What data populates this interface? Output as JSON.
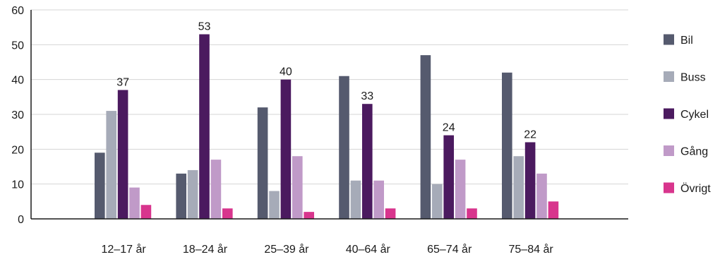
{
  "chart_data": {
    "type": "bar",
    "categories": [
      "12–17 år",
      "18–24 år",
      "25–39 år",
      "40–64 år",
      "65–74 år",
      "75–84 år"
    ],
    "series": [
      {
        "name": "Bil",
        "color": "#555a6e",
        "values": [
          19,
          13,
          32,
          41,
          47,
          42
        ]
      },
      {
        "name": "Buss",
        "color": "#a6abb8",
        "values": [
          31,
          14,
          8,
          11,
          10,
          18
        ]
      },
      {
        "name": "Cykel",
        "color": "#4b1a5f",
        "values": [
          37,
          53,
          40,
          33,
          24,
          22
        ]
      },
      {
        "name": "Gång",
        "color": "#c09ac8",
        "values": [
          9,
          17,
          18,
          11,
          17,
          13
        ]
      },
      {
        "name": "Övrigt",
        "color": "#d8358d",
        "values": [
          4,
          3,
          2,
          3,
          3,
          5
        ]
      }
    ],
    "data_labels": {
      "series": "Cykel",
      "values": [
        37,
        53,
        40,
        33,
        24,
        22
      ]
    },
    "yticks": [
      0,
      10,
      20,
      30,
      40,
      50,
      60
    ],
    "ylim": [
      0,
      60
    ],
    "title": "",
    "xlabel": "",
    "ylabel": "",
    "grid": true,
    "legend_position": "right"
  }
}
